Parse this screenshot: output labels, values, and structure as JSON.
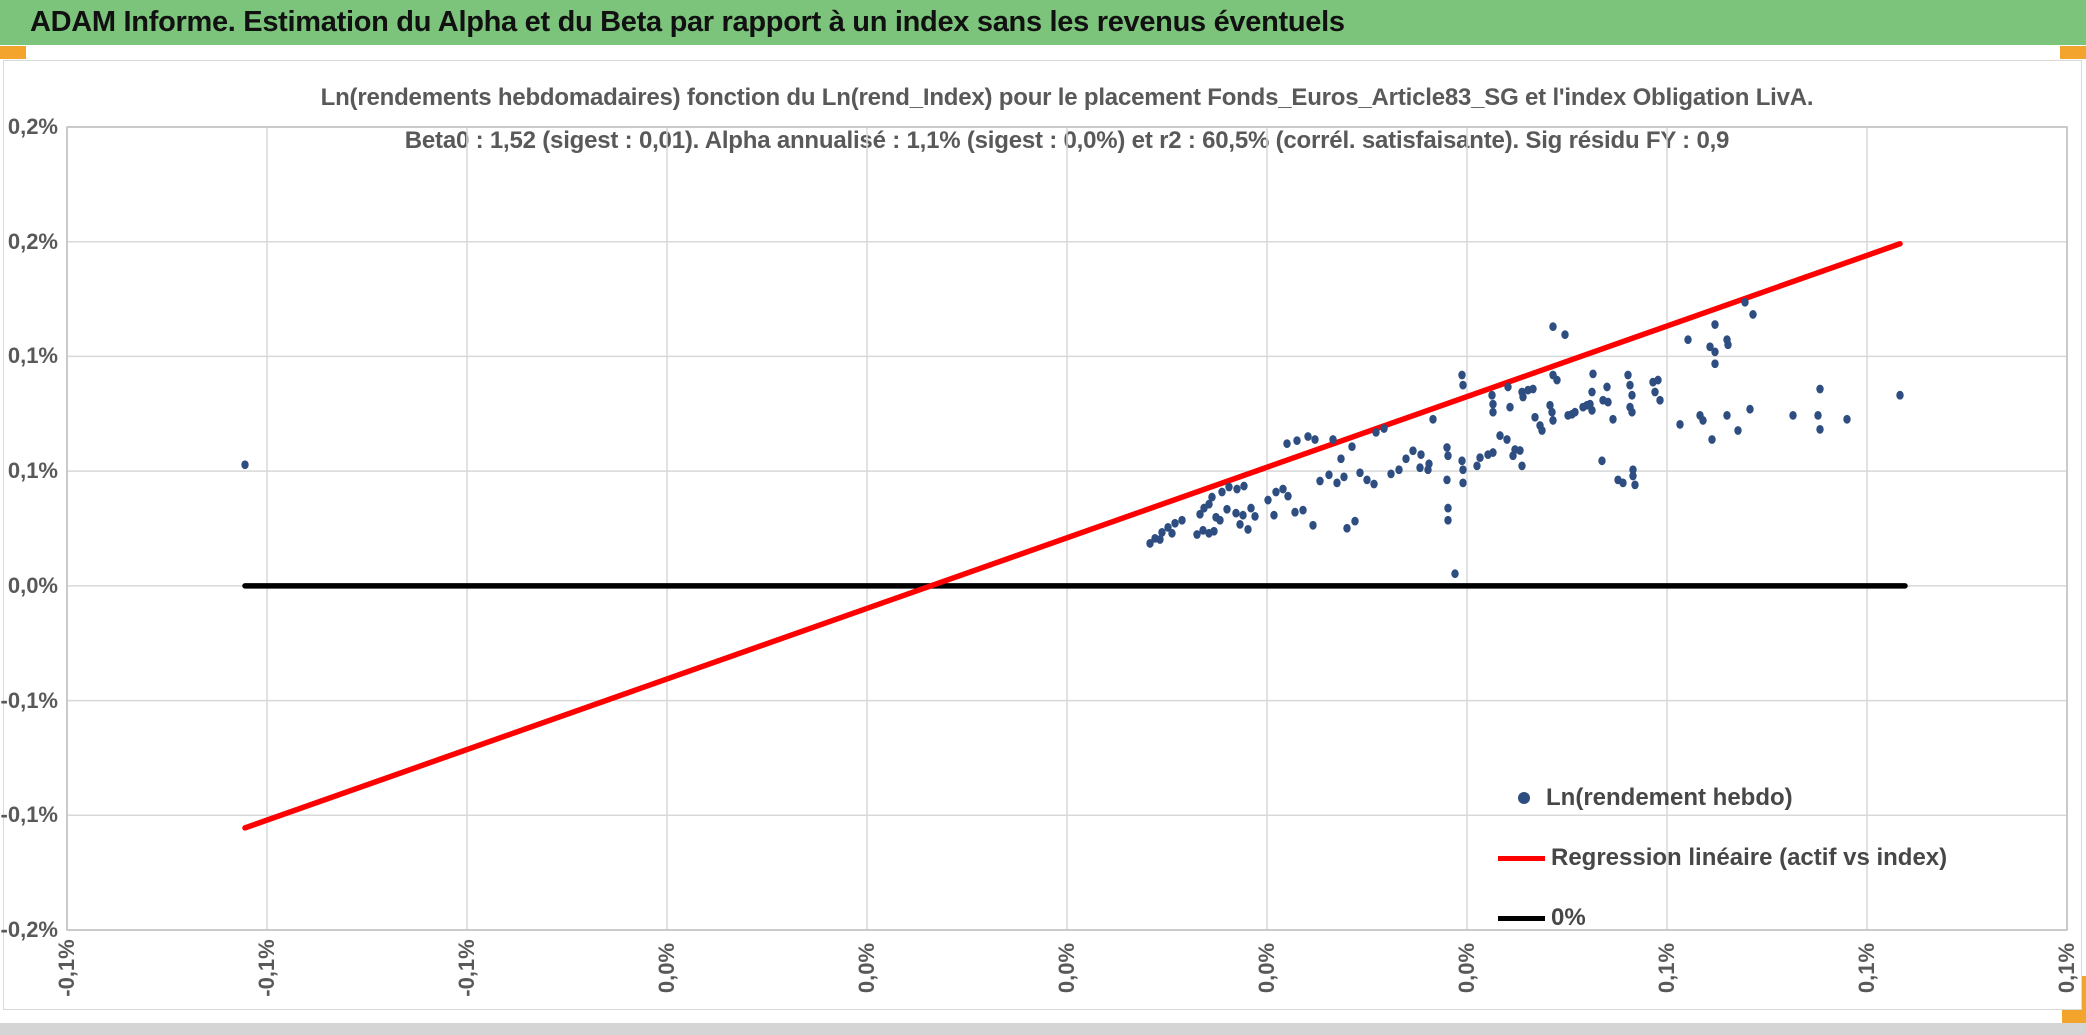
{
  "window": {
    "header_title": "ADAM Informe. Estimation du Alpha et du Beta par rapport à un index sans les revenus éventuels",
    "header_bg": "#7cc47c",
    "accent_color": "#f2a42c"
  },
  "chart_data": {
    "type": "scatter",
    "title_line1": "Ln(rendements hebdomadaires) fonction du Ln(rend_Index) pour le placement Fonds_Euros_Article83_SG et l'index Obligation LivA.",
    "title_line2": "Beta0 : 1,52 (sigest : 0,01). Alpha annualisé : 1,1% (sigest : 0,0%) et r2 : 60,5% (corrél. satisfaisante). Sig résidu FY : 0,9",
    "grid": true,
    "legend_position": "inside-bottom-right",
    "colors": {
      "grid": "#d8d8d8",
      "plot_border": "#c0c0c0",
      "tick_text": "#595959"
    },
    "x_axis": {
      "unit": "%",
      "min": -0.1,
      "max": 0.1,
      "ticks": [
        {
          "v": -0.1,
          "label": "-0,1%"
        },
        {
          "v": -0.08,
          "label": "-0,1%"
        },
        {
          "v": -0.06,
          "label": "-0,1%"
        },
        {
          "v": -0.04,
          "label": "0,0%"
        },
        {
          "v": -0.02,
          "label": "0,0%"
        },
        {
          "v": 0.0,
          "label": "0,0%"
        },
        {
          "v": 0.02,
          "label": "0,0%"
        },
        {
          "v": 0.04,
          "label": "0,0%"
        },
        {
          "v": 0.06,
          "label": "0,1%"
        },
        {
          "v": 0.08,
          "label": "0,1%"
        },
        {
          "v": 0.1,
          "label": "0,1%"
        }
      ]
    },
    "y_axis": {
      "unit": "%",
      "min": -0.15,
      "max": 0.2,
      "ticks": [
        {
          "v": 0.2,
          "label": "0,2%"
        },
        {
          "v": 0.15,
          "label": "0,2%"
        },
        {
          "v": 0.1,
          "label": "0,1%"
        },
        {
          "v": 0.05,
          "label": "0,1%"
        },
        {
          "v": 0.0,
          "label": "0,0%"
        },
        {
          "v": -0.05,
          "label": "-0,1%"
        },
        {
          "v": -0.1,
          "label": "-0,1%"
        },
        {
          "v": -0.15,
          "label": "-0,2%"
        }
      ]
    },
    "series": [
      {
        "name": "Ln(rendement hebdo)",
        "type": "scatter",
        "color": "#2E4D80",
        "points": [
          [
            -0.0822,
            0.0528
          ],
          [
            0.0083,
            0.0185
          ],
          [
            0.0088,
            0.0207
          ],
          [
            0.0093,
            0.0202
          ],
          [
            0.0095,
            0.0233
          ],
          [
            0.0101,
            0.0255
          ],
          [
            0.0105,
            0.0229
          ],
          [
            0.0108,
            0.0273
          ],
          [
            0.0115,
            0.0286
          ],
          [
            0.013,
            0.0224
          ],
          [
            0.0136,
            0.0242
          ],
          [
            0.0142,
            0.0229
          ],
          [
            0.0147,
            0.0238
          ],
          [
            0.0133,
            0.0312
          ],
          [
            0.0137,
            0.0339
          ],
          [
            0.0142,
            0.0356
          ],
          [
            0.0145,
            0.0387
          ],
          [
            0.0149,
            0.0299
          ],
          [
            0.0153,
            0.0286
          ],
          [
            0.0155,
            0.0409
          ],
          [
            0.0162,
            0.0431
          ],
          [
            0.017,
            0.0422
          ],
          [
            0.0177,
            0.0435
          ],
          [
            0.016,
            0.0334
          ],
          [
            0.0169,
            0.0317
          ],
          [
            0.0176,
            0.0308
          ],
          [
            0.0184,
            0.0339
          ],
          [
            0.0173,
            0.0268
          ],
          [
            0.0181,
            0.0246
          ],
          [
            0.0188,
            0.0303
          ],
          [
            0.0201,
            0.0374
          ],
          [
            0.0209,
            0.0409
          ],
          [
            0.0216,
            0.0422
          ],
          [
            0.0221,
            0.0391
          ],
          [
            0.0207,
            0.0308
          ],
          [
            0.0228,
            0.0321
          ],
          [
            0.0236,
            0.033
          ],
          [
            0.0246,
            0.0264
          ],
          [
            0.0253,
            0.0457
          ],
          [
            0.0262,
            0.0484
          ],
          [
            0.027,
            0.0449
          ],
          [
            0.0277,
            0.0475
          ],
          [
            0.028,
            0.0251
          ],
          [
            0.0288,
            0.0282
          ],
          [
            0.0293,
            0.0493
          ],
          [
            0.03,
            0.0462
          ],
          [
            0.0307,
            0.0444
          ],
          [
            0.0324,
            0.0488
          ],
          [
            0.0332,
            0.0506
          ],
          [
            0.0339,
            0.0554
          ],
          [
            0.0346,
            0.0589
          ],
          [
            0.0354,
            0.0572
          ],
          [
            0.0362,
            0.0532
          ],
          [
            0.022,
            0.062
          ],
          [
            0.023,
            0.0633
          ],
          [
            0.0241,
            0.0651
          ],
          [
            0.0248,
            0.0638
          ],
          [
            0.0266,
            0.0638
          ],
          [
            0.0274,
            0.0554
          ],
          [
            0.0285,
            0.0607
          ],
          [
            0.0309,
            0.0669
          ],
          [
            0.0317,
            0.0686
          ],
          [
            0.0353,
            0.0515
          ],
          [
            0.0361,
            0.0506
          ],
          [
            0.0366,
            0.0726
          ],
          [
            0.038,
            0.0603
          ],
          [
            0.0381,
            0.0567
          ],
          [
            0.038,
            0.0462
          ],
          [
            0.0381,
            0.0339
          ],
          [
            0.0381,
            0.0286
          ],
          [
            0.0388,
            0.0053
          ],
          [
            0.0395,
            0.0919
          ],
          [
            0.0396,
            0.0875
          ],
          [
            0.0395,
            0.0545
          ],
          [
            0.0396,
            0.0506
          ],
          [
            0.0396,
            0.0449
          ],
          [
            0.041,
            0.0523
          ],
          [
            0.0413,
            0.0559
          ],
          [
            0.0421,
            0.0572
          ],
          [
            0.0426,
            0.0581
          ],
          [
            0.0425,
            0.0831
          ],
          [
            0.0426,
            0.0792
          ],
          [
            0.0426,
            0.0757
          ],
          [
            0.0433,
            0.0655
          ],
          [
            0.044,
            0.0638
          ],
          [
            0.0441,
            0.0867
          ],
          [
            0.0443,
            0.0779
          ],
          [
            0.0446,
            0.0567
          ],
          [
            0.0448,
            0.0594
          ],
          [
            0.0453,
            0.059
          ],
          [
            0.0455,
            0.0523
          ],
          [
            0.0455,
            0.0845
          ],
          [
            0.0456,
            0.0823
          ],
          [
            0.0461,
            0.0853
          ],
          [
            0.0466,
            0.0858
          ],
          [
            0.0468,
            0.0735
          ],
          [
            0.0473,
            0.0699
          ],
          [
            0.0475,
            0.0677
          ],
          [
            0.0483,
            0.0787
          ],
          [
            0.0485,
            0.0757
          ],
          [
            0.0486,
            0.0721
          ],
          [
            0.0486,
            0.0919
          ],
          [
            0.049,
            0.0897
          ],
          [
            0.0486,
            0.113
          ],
          [
            0.0498,
            0.1095
          ],
          [
            0.0501,
            0.0743
          ],
          [
            0.0505,
            0.0748
          ],
          [
            0.0508,
            0.0757
          ],
          [
            0.0516,
            0.0779
          ],
          [
            0.052,
            0.0787
          ],
          [
            0.0523,
            0.0792
          ],
          [
            0.0525,
            0.0765
          ],
          [
            0.0525,
            0.0845
          ],
          [
            0.0526,
            0.0924
          ],
          [
            0.0535,
            0.0545
          ],
          [
            0.0536,
            0.0809
          ],
          [
            0.054,
            0.0867
          ],
          [
            0.0541,
            0.0801
          ],
          [
            0.0546,
            0.0726
          ],
          [
            0.0551,
            0.0462
          ],
          [
            0.0556,
            0.0449
          ],
          [
            0.0561,
            0.0919
          ],
          [
            0.0563,
            0.0875
          ],
          [
            0.0565,
            0.0831
          ],
          [
            0.0563,
            0.0779
          ],
          [
            0.0565,
            0.0757
          ],
          [
            0.0566,
            0.0506
          ],
          [
            0.0566,
            0.0479
          ],
          [
            0.0568,
            0.044
          ],
          [
            0.0586,
            0.0888
          ],
          [
            0.0591,
            0.0897
          ],
          [
            0.0588,
            0.0845
          ],
          [
            0.0593,
            0.0809
          ],
          [
            0.0613,
            0.0704
          ],
          [
            0.0621,
            0.1073
          ],
          [
            0.0648,
            0.1139
          ],
          [
            0.0643,
            0.1042
          ],
          [
            0.0648,
            0.102
          ],
          [
            0.066,
            0.1073
          ],
          [
            0.0661,
            0.1051
          ],
          [
            0.0648,
            0.0968
          ],
          [
            0.0678,
            0.1236
          ],
          [
            0.0686,
            0.1183
          ],
          [
            0.0633,
            0.0743
          ],
          [
            0.0636,
            0.0721
          ],
          [
            0.0645,
            0.0638
          ],
          [
            0.066,
            0.0743
          ],
          [
            0.0671,
            0.0677
          ],
          [
            0.0683,
            0.077
          ],
          [
            0.0726,
            0.0743
          ],
          [
            0.0753,
            0.0858
          ],
          [
            0.0751,
            0.0743
          ],
          [
            0.0753,
            0.0682
          ],
          [
            0.078,
            0.0726
          ],
          [
            0.0833,
            0.0831
          ]
        ]
      },
      {
        "name": "Regression linéaire (actif vs index)",
        "type": "line",
        "color": "#FF0000",
        "points": [
          [
            -0.0822,
            -0.1055
          ],
          [
            0.0833,
            0.1491
          ]
        ]
      },
      {
        "name": "0%",
        "type": "line",
        "color": "#000000",
        "points": [
          [
            -0.0822,
            0.0
          ],
          [
            0.0838,
            0.0
          ]
        ]
      }
    ]
  }
}
